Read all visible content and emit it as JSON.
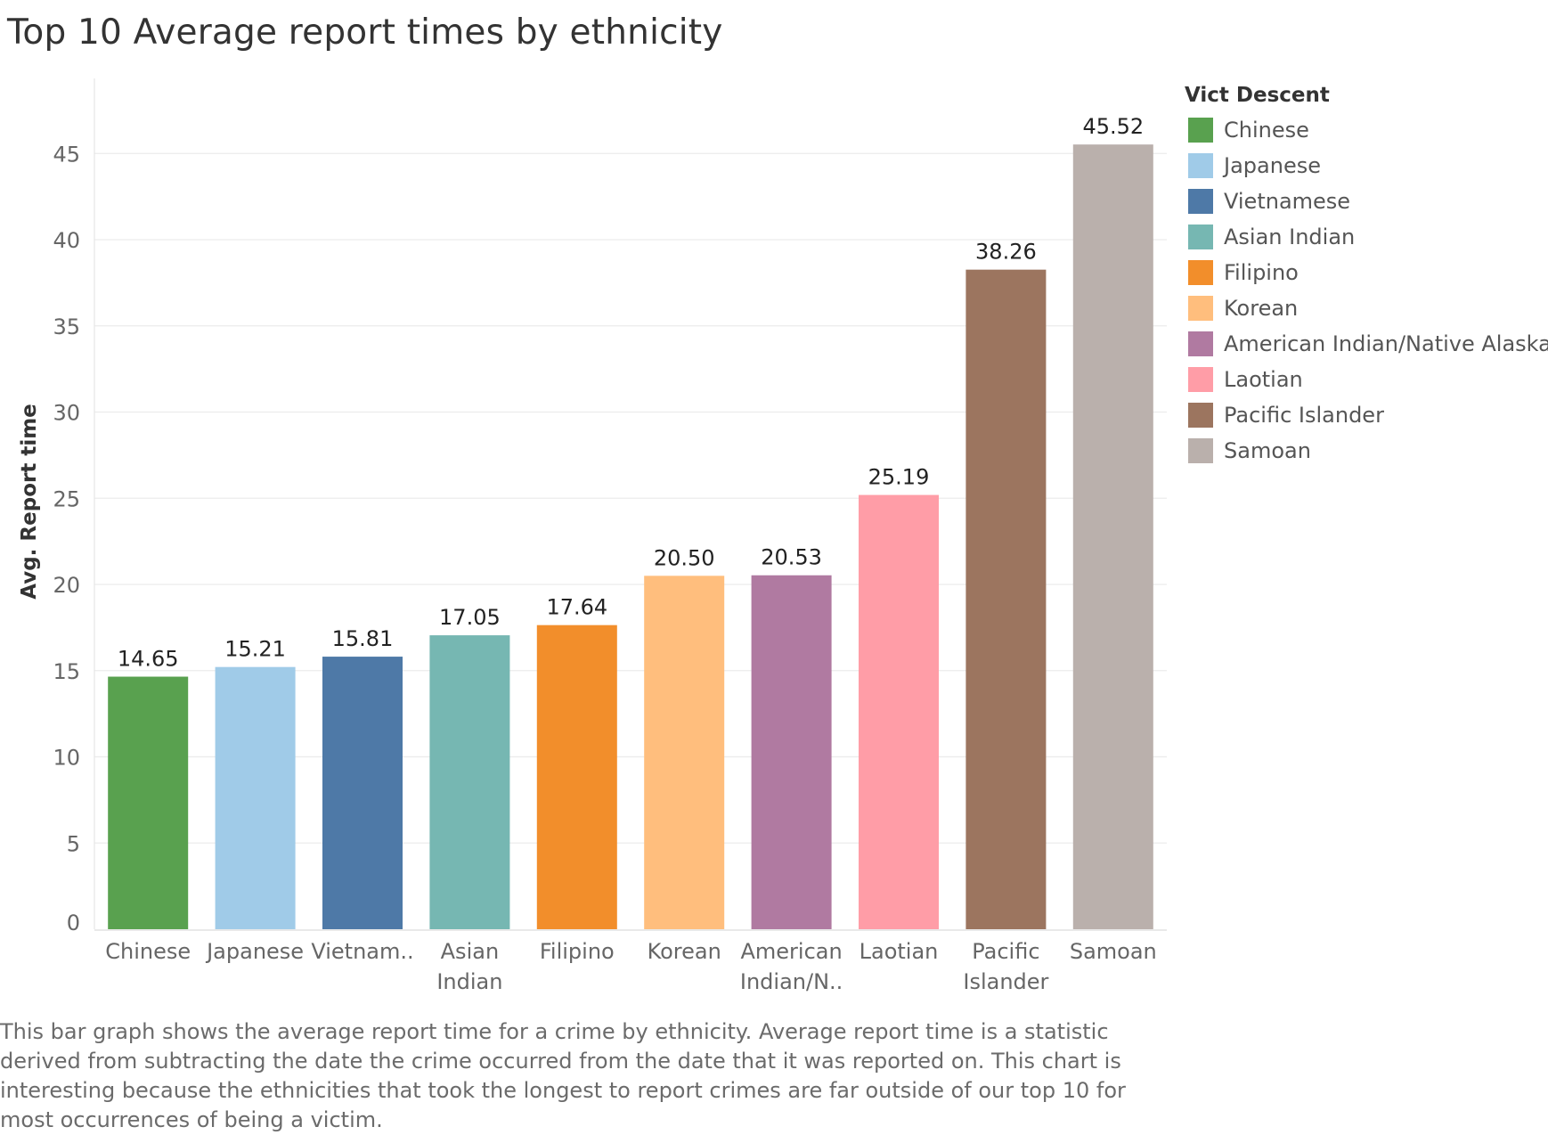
{
  "chart_data": {
    "type": "bar",
    "title": "Top 10 Average report times by ethnicity",
    "ylabel": "Avg. Report time",
    "xlabel": "",
    "ylim": [
      0,
      50
    ],
    "yticks": [
      0,
      5,
      10,
      15,
      20,
      25,
      30,
      35,
      40,
      45
    ],
    "categories": [
      "Chinese",
      "Japanese",
      "Vietnamese",
      "Asian Indian",
      "Filipino",
      "Korean",
      "American Indian/Native Alaskan",
      "Laotian",
      "Pacific Islander",
      "Samoan"
    ],
    "tick_labels": [
      [
        "Chinese"
      ],
      [
        "Japanese"
      ],
      [
        "Vietnam.."
      ],
      [
        "Asian",
        "Indian"
      ],
      [
        "Filipino"
      ],
      [
        "Korean"
      ],
      [
        "American",
        "Indian/N.."
      ],
      [
        "Laotian"
      ],
      [
        "Pacific",
        "Islander"
      ],
      [
        "Samoan"
      ]
    ],
    "values": [
      14.65,
      15.21,
      15.81,
      17.05,
      17.64,
      20.5,
      20.53,
      25.19,
      38.26,
      45.52
    ],
    "value_labels": [
      "14.65",
      "15.21",
      "15.81",
      "17.05",
      "17.64",
      "20.50",
      "20.53",
      "25.19",
      "38.26",
      "45.52"
    ],
    "colors": [
      "#59a14f",
      "#a0cbe8",
      "#4e79a7",
      "#76b7b2",
      "#f28e2b",
      "#ffbe7d",
      "#b07aa1",
      "#ff9da7",
      "#9c755f",
      "#bab0ac"
    ],
    "grid": true,
    "legend": {
      "title": "Vict Descent",
      "placement": "right",
      "entries": [
        "Chinese",
        "Japanese",
        "Vietnamese",
        "Asian Indian",
        "Filipino",
        "Korean",
        "American Indian/Native Alaskan",
        "Laotian",
        "Pacific Islander",
        "Samoan"
      ]
    }
  },
  "caption": "This bar graph shows the average report time for a crime by ethnicity. Average report time is a statistic derived from subtracting the date the crime occurred from the date that it was reported on. This chart is interesting because the ethnicities that took the longest to report crimes are far outside of our top 10 for most occurrences of being a victim."
}
